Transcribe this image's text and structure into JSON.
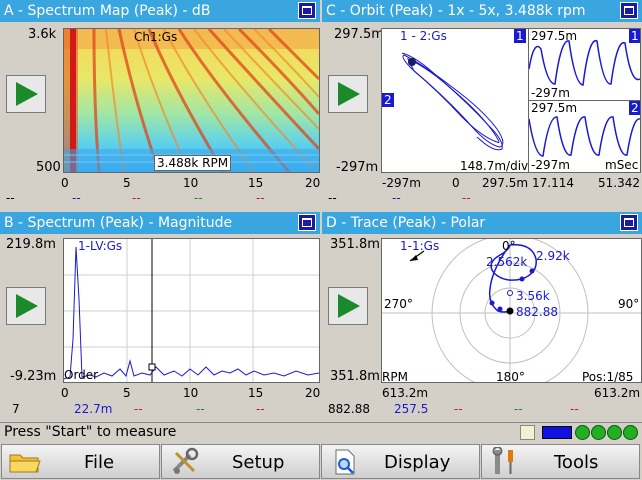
{
  "panels": {
    "a": {
      "title": "A - Spectrum Map (Peak) - dB",
      "y_top": "3.6k",
      "y_bottom": "500",
      "x_ticks": [
        "0",
        "5",
        "10",
        "15",
        "20"
      ],
      "channel": "Ch1:Gs",
      "rpm_label": "3.488k RPM",
      "footer": [
        "--",
        "--",
        "--",
        "--",
        "--"
      ]
    },
    "b": {
      "title": "B - Spectrum (Peak) - Magnitude",
      "y_top": "219.8m",
      "y_bottom": "-9.23m",
      "channel": "1-LV:Gs",
      "x_axis_label": "Order",
      "x_ticks": [
        "0",
        "5",
        "10",
        "15",
        "20"
      ],
      "footer_left": "7",
      "footer_value": "22.7m",
      "footer_dashes": [
        "--",
        "--",
        "--"
      ]
    },
    "c": {
      "title": "C - Orbit (Peak) - 1x - 5x, 3.488k rpm",
      "y_top": "297.5m",
      "y_bottom": "-297m",
      "channel": "1 - 2:Gs",
      "marker_1": "1",
      "marker_2": "2",
      "scale": "148.7m/div",
      "x_ticks": [
        "-297m",
        "0",
        "297.5m"
      ],
      "trace_top_max": "297.5m",
      "trace_top_min": "-297m",
      "trace_bottom_max": "297.5m",
      "trace_bottom_min": "-297m",
      "time_unit": "mSec",
      "time_start": "17.114",
      "time_end": "51.342",
      "footer": [
        "--",
        "--",
        "--"
      ]
    },
    "d": {
      "title": "D - Trace (Peak) - Polar",
      "y_top": "351.8m",
      "y_bottom": "351.8m",
      "channel": "1-1:Gs",
      "angle_0": "0°",
      "angle_90": "90°",
      "angle_180": "180°",
      "angle_270": "270°",
      "rpm_1": "2.562k",
      "rpm_2": "2.92k",
      "rpm_3": "3.56k",
      "value_1": "882.88",
      "rpm_label": "RPM",
      "pos": "Pos:1/85",
      "x_left": "613.2m",
      "x_right": "613.2m",
      "footer_left": "882.88",
      "footer_value": "257.5",
      "footer_dashes": [
        "--",
        "--",
        "--"
      ]
    }
  },
  "status": {
    "message": "Press \"Start\" to measure"
  },
  "menu": [
    {
      "label": "File",
      "icon": "folder-icon"
    },
    {
      "label": "Setup",
      "icon": "tools-icon"
    },
    {
      "label": "Display",
      "icon": "document-magnifier-icon"
    },
    {
      "label": "Tools",
      "icon": "wrench-screwdriver-icon"
    }
  ],
  "colors": {
    "title_bar": "#3aa6e0",
    "trace": "#1a1ad0",
    "accent_green": "#22b022"
  }
}
